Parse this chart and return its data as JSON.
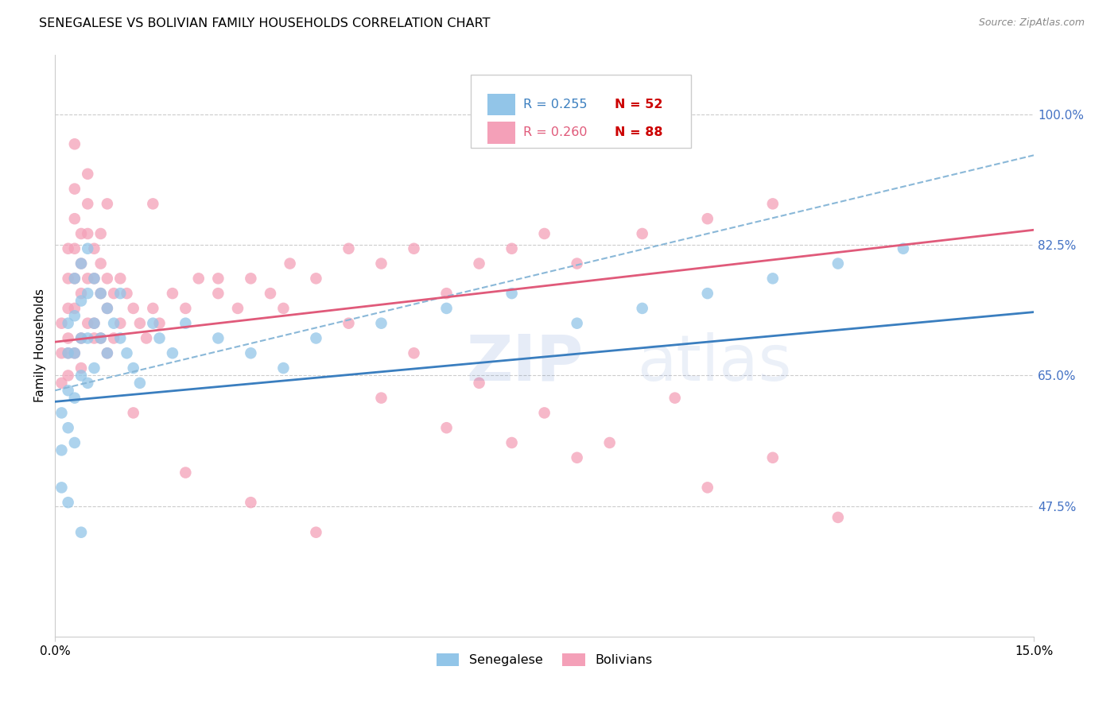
{
  "title": "SENEGALESE VS BOLIVIAN FAMILY HOUSEHOLDS CORRELATION CHART",
  "source": "Source: ZipAtlas.com",
  "ylabel": "Family Households",
  "ytick_labels": [
    "100.0%",
    "82.5%",
    "65.0%",
    "47.5%"
  ],
  "ytick_values": [
    1.0,
    0.825,
    0.65,
    0.475
  ],
  "xlim": [
    0.0,
    0.15
  ],
  "ylim": [
    0.3,
    1.08
  ],
  "legend_label_blue": "Senegalese",
  "legend_label_pink": "Bolivians",
  "color_blue": "#92c5e8",
  "color_pink": "#f4a0b8",
  "color_blue_line": "#3a7ebf",
  "color_pink_line": "#e05a7a",
  "color_blue_dashed": "#8ab8d8",
  "color_axis_labels": "#4472C4",
  "color_red_n": "#cc0000",
  "senegalese_x": [
    0.001,
    0.001,
    0.001,
    0.002,
    0.002,
    0.002,
    0.002,
    0.003,
    0.003,
    0.003,
    0.003,
    0.003,
    0.004,
    0.004,
    0.004,
    0.004,
    0.005,
    0.005,
    0.005,
    0.005,
    0.006,
    0.006,
    0.006,
    0.007,
    0.007,
    0.008,
    0.008,
    0.009,
    0.01,
    0.01,
    0.011,
    0.012,
    0.013,
    0.015,
    0.016,
    0.018,
    0.02,
    0.025,
    0.03,
    0.035,
    0.04,
    0.05,
    0.06,
    0.07,
    0.08,
    0.09,
    0.1,
    0.11,
    0.12,
    0.13,
    0.002,
    0.004
  ],
  "senegalese_y": [
    0.6,
    0.55,
    0.5,
    0.72,
    0.68,
    0.63,
    0.58,
    0.78,
    0.73,
    0.68,
    0.62,
    0.56,
    0.8,
    0.75,
    0.7,
    0.65,
    0.82,
    0.76,
    0.7,
    0.64,
    0.78,
    0.72,
    0.66,
    0.76,
    0.7,
    0.74,
    0.68,
    0.72,
    0.76,
    0.7,
    0.68,
    0.66,
    0.64,
    0.72,
    0.7,
    0.68,
    0.72,
    0.7,
    0.68,
    0.66,
    0.7,
    0.72,
    0.74,
    0.76,
    0.72,
    0.74,
    0.76,
    0.78,
    0.8,
    0.82,
    0.48,
    0.44
  ],
  "bolivians_x": [
    0.001,
    0.001,
    0.001,
    0.002,
    0.002,
    0.002,
    0.002,
    0.002,
    0.003,
    0.003,
    0.003,
    0.003,
    0.003,
    0.004,
    0.004,
    0.004,
    0.004,
    0.005,
    0.005,
    0.005,
    0.005,
    0.006,
    0.006,
    0.006,
    0.007,
    0.007,
    0.007,
    0.008,
    0.008,
    0.008,
    0.009,
    0.009,
    0.01,
    0.01,
    0.011,
    0.012,
    0.013,
    0.014,
    0.015,
    0.016,
    0.018,
    0.02,
    0.022,
    0.025,
    0.028,
    0.03,
    0.033,
    0.036,
    0.04,
    0.045,
    0.05,
    0.055,
    0.06,
    0.065,
    0.07,
    0.075,
    0.08,
    0.09,
    0.1,
    0.11,
    0.003,
    0.005,
    0.008,
    0.012,
    0.05,
    0.07,
    0.11,
    0.002,
    0.004,
    0.006,
    0.02,
    0.03,
    0.04,
    0.06,
    0.08,
    0.1,
    0.12,
    0.003,
    0.007,
    0.015,
    0.025,
    0.035,
    0.045,
    0.055,
    0.065,
    0.075,
    0.085,
    0.095
  ],
  "bolivians_y": [
    0.72,
    0.68,
    0.64,
    0.82,
    0.78,
    0.74,
    0.7,
    0.65,
    0.86,
    0.82,
    0.78,
    0.74,
    0.68,
    0.84,
    0.8,
    0.76,
    0.7,
    0.88,
    0.84,
    0.78,
    0.72,
    0.82,
    0.78,
    0.72,
    0.8,
    0.76,
    0.7,
    0.78,
    0.74,
    0.68,
    0.76,
    0.7,
    0.78,
    0.72,
    0.76,
    0.74,
    0.72,
    0.7,
    0.74,
    0.72,
    0.76,
    0.74,
    0.78,
    0.76,
    0.74,
    0.78,
    0.76,
    0.8,
    0.78,
    0.82,
    0.8,
    0.82,
    0.76,
    0.8,
    0.82,
    0.84,
    0.8,
    0.84,
    0.86,
    0.88,
    0.96,
    0.92,
    0.88,
    0.6,
    0.62,
    0.56,
    0.54,
    0.68,
    0.66,
    0.7,
    0.52,
    0.48,
    0.44,
    0.58,
    0.54,
    0.5,
    0.46,
    0.9,
    0.84,
    0.88,
    0.78,
    0.74,
    0.72,
    0.68,
    0.64,
    0.6,
    0.56,
    0.62
  ]
}
